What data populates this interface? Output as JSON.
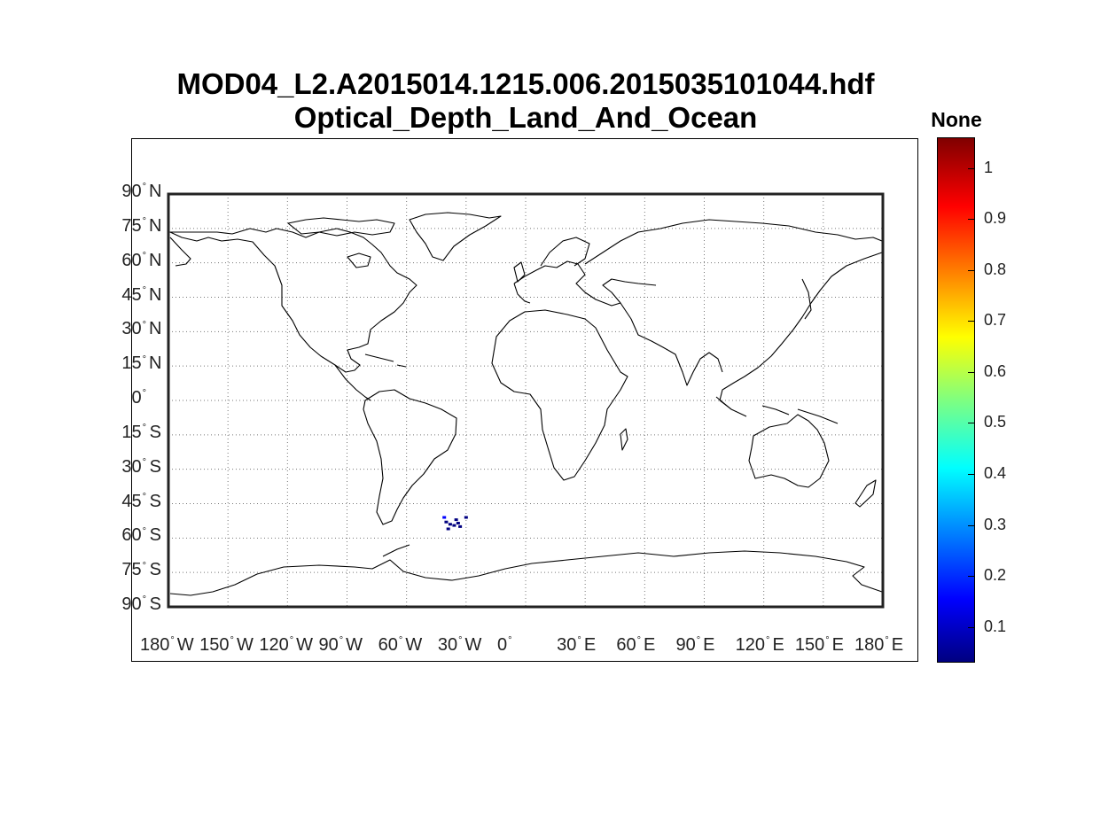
{
  "title": {
    "line1": "MOD04_L2.A2015014.1215.006.2015035101044.hdf",
    "line2": "Optical_Depth_Land_And_Ocean"
  },
  "map": {
    "lon_range": [
      -180,
      180
    ],
    "lat_range": [
      -90,
      90
    ],
    "grid": "dotted",
    "lat_ticks": [
      {
        "value": 90,
        "num": "90",
        "hemi": "N"
      },
      {
        "value": 75,
        "num": "75",
        "hemi": "N"
      },
      {
        "value": 60,
        "num": "60",
        "hemi": "N"
      },
      {
        "value": 45,
        "num": "45",
        "hemi": "N"
      },
      {
        "value": 30,
        "num": "30",
        "hemi": "N"
      },
      {
        "value": 15,
        "num": "15",
        "hemi": "N"
      },
      {
        "value": 0,
        "num": "0",
        "hemi": ""
      },
      {
        "value": -15,
        "num": "15",
        "hemi": "S"
      },
      {
        "value": -30,
        "num": "30",
        "hemi": "S"
      },
      {
        "value": -45,
        "num": "45",
        "hemi": "S"
      },
      {
        "value": -60,
        "num": "60",
        "hemi": "S"
      },
      {
        "value": -75,
        "num": "75",
        "hemi": "S"
      },
      {
        "value": -90,
        "num": "90",
        "hemi": "S"
      }
    ],
    "lon_ticks": [
      {
        "value": -180,
        "num": "180",
        "hemi": "W"
      },
      {
        "value": -150,
        "num": "150",
        "hemi": "W"
      },
      {
        "value": -120,
        "num": "120",
        "hemi": "W"
      },
      {
        "value": -90,
        "num": "90",
        "hemi": "W"
      },
      {
        "value": -60,
        "num": "60",
        "hemi": "W"
      },
      {
        "value": -30,
        "num": "30",
        "hemi": "W"
      },
      {
        "value": 0,
        "num": "0",
        "hemi": ""
      },
      {
        "value": 30,
        "num": "30",
        "hemi": "E"
      },
      {
        "value": 60,
        "num": "60",
        "hemi": "E"
      },
      {
        "value": 90,
        "num": "90",
        "hemi": "E"
      },
      {
        "value": 120,
        "num": "120",
        "hemi": "E"
      },
      {
        "value": 150,
        "num": "150",
        "hemi": "E"
      },
      {
        "value": 180,
        "num": "180",
        "hemi": "E"
      }
    ],
    "data_points": [
      {
        "lon": -40,
        "lat": -53,
        "value": 0.1
      },
      {
        "lon": -38,
        "lat": -54,
        "value": 0.12
      },
      {
        "lon": -36,
        "lat": -54.5,
        "value": 0.08
      },
      {
        "lon": -34,
        "lat": -53.5,
        "value": 0.1
      },
      {
        "lon": -41,
        "lat": -51,
        "value": 0.15
      },
      {
        "lon": -35,
        "lat": -52,
        "value": 0.1
      },
      {
        "lon": -33,
        "lat": -55,
        "value": 0.12
      },
      {
        "lon": -39,
        "lat": -56,
        "value": 0.1
      },
      {
        "lon": -30,
        "lat": -51,
        "value": 0.09
      }
    ]
  },
  "colorbar": {
    "label": "None",
    "range": [
      0.03,
      1.06
    ],
    "ticks": [
      "0.1",
      "0.2",
      "0.3",
      "0.4",
      "0.5",
      "0.6",
      "0.7",
      "0.8",
      "0.9",
      "1"
    ],
    "colormap": [
      "#000080",
      "#0000ff",
      "#00ffff",
      "#ffff00",
      "#ff0000",
      "#800000"
    ]
  }
}
